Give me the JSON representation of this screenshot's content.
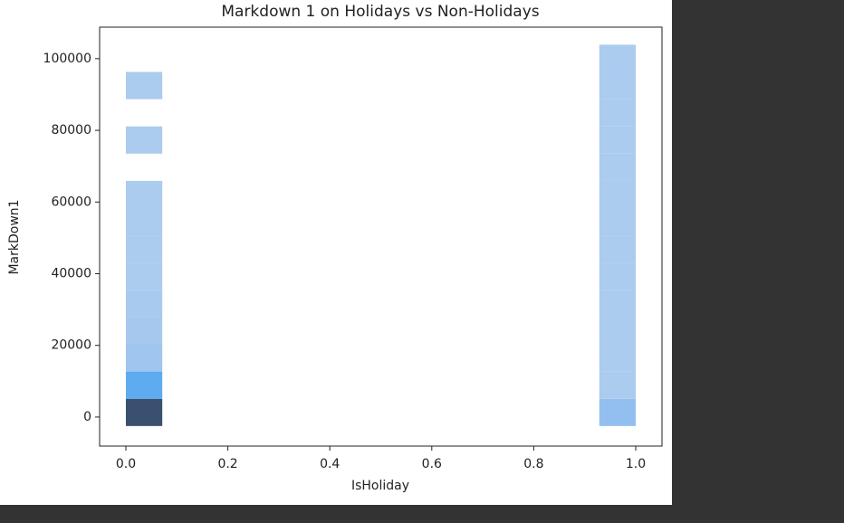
{
  "chart_data": {
    "type": "hist2d",
    "title": "Markdown 1 on Holidays vs Non-Holidays",
    "x_label": "IsHoliday",
    "y_label": "MarkDown1",
    "xlim": [
      -0.0515,
      1.0515
    ],
    "ylim": [
      -8100,
      108800
    ],
    "xticks": [
      {
        "value": 0,
        "label": "0.0"
      },
      {
        "value": 0.2,
        "label": "0.2"
      },
      {
        "value": 0.4,
        "label": "0.4"
      },
      {
        "value": 0.6,
        "label": "0.6"
      },
      {
        "value": 0.8,
        "label": "0.8"
      },
      {
        "value": 1,
        "label": "1.0"
      }
    ],
    "yticks": [
      0,
      20000,
      40000,
      60000,
      80000,
      100000
    ],
    "cells": [
      {
        "x": [
          0,
          0.0714
        ],
        "y": [
          -2500,
          5100
        ],
        "color": "#3a5070"
      },
      {
        "x": [
          0,
          0.0714
        ],
        "y": [
          5100,
          12700
        ],
        "color": "#5eabf0"
      },
      {
        "x": [
          0,
          0.0714
        ],
        "y": [
          12700,
          20300
        ],
        "color": "#a0c5ee"
      },
      {
        "x": [
          0,
          0.0714
        ],
        "y": [
          20300,
          27900
        ],
        "color": "#a6c8ef"
      },
      {
        "x": [
          0,
          0.0714
        ],
        "y": [
          27900,
          35500
        ],
        "color": "#a9caef"
      },
      {
        "x": [
          0,
          0.0714
        ],
        "y": [
          35500,
          43100
        ],
        "color": "#abcbef"
      },
      {
        "x": [
          0,
          0.0714
        ],
        "y": [
          43100,
          50700
        ],
        "color": "#abcbef"
      },
      {
        "x": [
          0,
          0.0714
        ],
        "y": [
          50700,
          58300
        ],
        "color": "#abcbef"
      },
      {
        "x": [
          0,
          0.0714
        ],
        "y": [
          58300,
          65900
        ],
        "color": "#abcbef"
      },
      {
        "x": [
          0,
          0.0714
        ],
        "y": [
          73500,
          81100
        ],
        "color": "#abcbef"
      },
      {
        "x": [
          0,
          0.0714
        ],
        "y": [
          88700,
          96300
        ],
        "color": "#abcbef"
      },
      {
        "x": [
          0.9286,
          1
        ],
        "y": [
          -2500,
          5100
        ],
        "color": "#93bff0"
      },
      {
        "x": [
          0.9286,
          1
        ],
        "y": [
          5100,
          12700
        ],
        "color": "#abcbef"
      },
      {
        "x": [
          0.9286,
          1
        ],
        "y": [
          12700,
          20300
        ],
        "color": "#abcbef"
      },
      {
        "x": [
          0.9286,
          1
        ],
        "y": [
          20300,
          27900
        ],
        "color": "#abcbef"
      },
      {
        "x": [
          0.9286,
          1
        ],
        "y": [
          27900,
          35500
        ],
        "color": "#abcbef"
      },
      {
        "x": [
          0.9286,
          1
        ],
        "y": [
          35500,
          43100
        ],
        "color": "#abcbef"
      },
      {
        "x": [
          0.9286,
          1
        ],
        "y": [
          43100,
          50700
        ],
        "color": "#abcbef"
      },
      {
        "x": [
          0.9286,
          1
        ],
        "y": [
          50700,
          58300
        ],
        "color": "#abcbef"
      },
      {
        "x": [
          0.9286,
          1
        ],
        "y": [
          58300,
          65900
        ],
        "color": "#abcbef"
      },
      {
        "x": [
          0.9286,
          1
        ],
        "y": [
          65900,
          73500
        ],
        "color": "#abcbef"
      },
      {
        "x": [
          0.9286,
          1
        ],
        "y": [
          73500,
          81100
        ],
        "color": "#abcbef"
      },
      {
        "x": [
          0.9286,
          1
        ],
        "y": [
          81100,
          88700
        ],
        "color": "#abcbef"
      },
      {
        "x": [
          0.9286,
          1
        ],
        "y": [
          88700,
          96300
        ],
        "color": "#abcbef"
      },
      {
        "x": [
          0.9286,
          1
        ],
        "y": [
          96300,
          103900
        ],
        "color": "#abcbef"
      }
    ]
  }
}
